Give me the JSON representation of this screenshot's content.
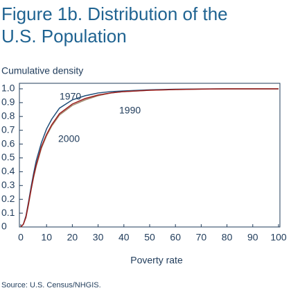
{
  "chart_data": {
    "type": "line",
    "title": "Figure 1b. Distribution of the U.S. Population",
    "ylabel": "Cumulative density",
    "xlabel": "Poverty rate",
    "source": "Source: U.S. Census/NHGIS.",
    "x": [
      0,
      1,
      2,
      3,
      4,
      5,
      6,
      8,
      10,
      12,
      15,
      20,
      25,
      30,
      35,
      40,
      50,
      60,
      70,
      80,
      100
    ],
    "series": [
      {
        "name": "1970",
        "color": "#1f4e79",
        "values": [
          0,
          0.02,
          0.08,
          0.18,
          0.29,
          0.39,
          0.48,
          0.61,
          0.71,
          0.78,
          0.86,
          0.92,
          0.95,
          0.97,
          0.98,
          0.985,
          0.993,
          0.997,
          0.999,
          1,
          1
        ]
      },
      {
        "name": "1990",
        "color": "#a08a6e",
        "values": [
          0,
          0.02,
          0.07,
          0.16,
          0.27,
          0.36,
          0.44,
          0.57,
          0.66,
          0.73,
          0.81,
          0.88,
          0.92,
          0.95,
          0.97,
          0.98,
          0.99,
          0.995,
          0.998,
          1,
          1
        ]
      },
      {
        "name": "2000",
        "color": "#9b1c1c",
        "values": [
          0,
          0.02,
          0.07,
          0.17,
          0.27,
          0.37,
          0.45,
          0.58,
          0.67,
          0.74,
          0.82,
          0.89,
          0.93,
          0.955,
          0.97,
          0.98,
          0.99,
          0.995,
          0.998,
          1,
          1
        ]
      }
    ],
    "xlim": [
      0,
      100
    ],
    "xticks": [
      0,
      10,
      20,
      30,
      40,
      50,
      60,
      70,
      80,
      90,
      100
    ],
    "ylim": [
      0,
      1.04
    ],
    "yticks": [
      0,
      0.1,
      0.2,
      0.3,
      0.4,
      0.5,
      0.6,
      0.7,
      0.8,
      0.9,
      {
        "value": 1,
        "label": "1.0"
      }
    ]
  }
}
